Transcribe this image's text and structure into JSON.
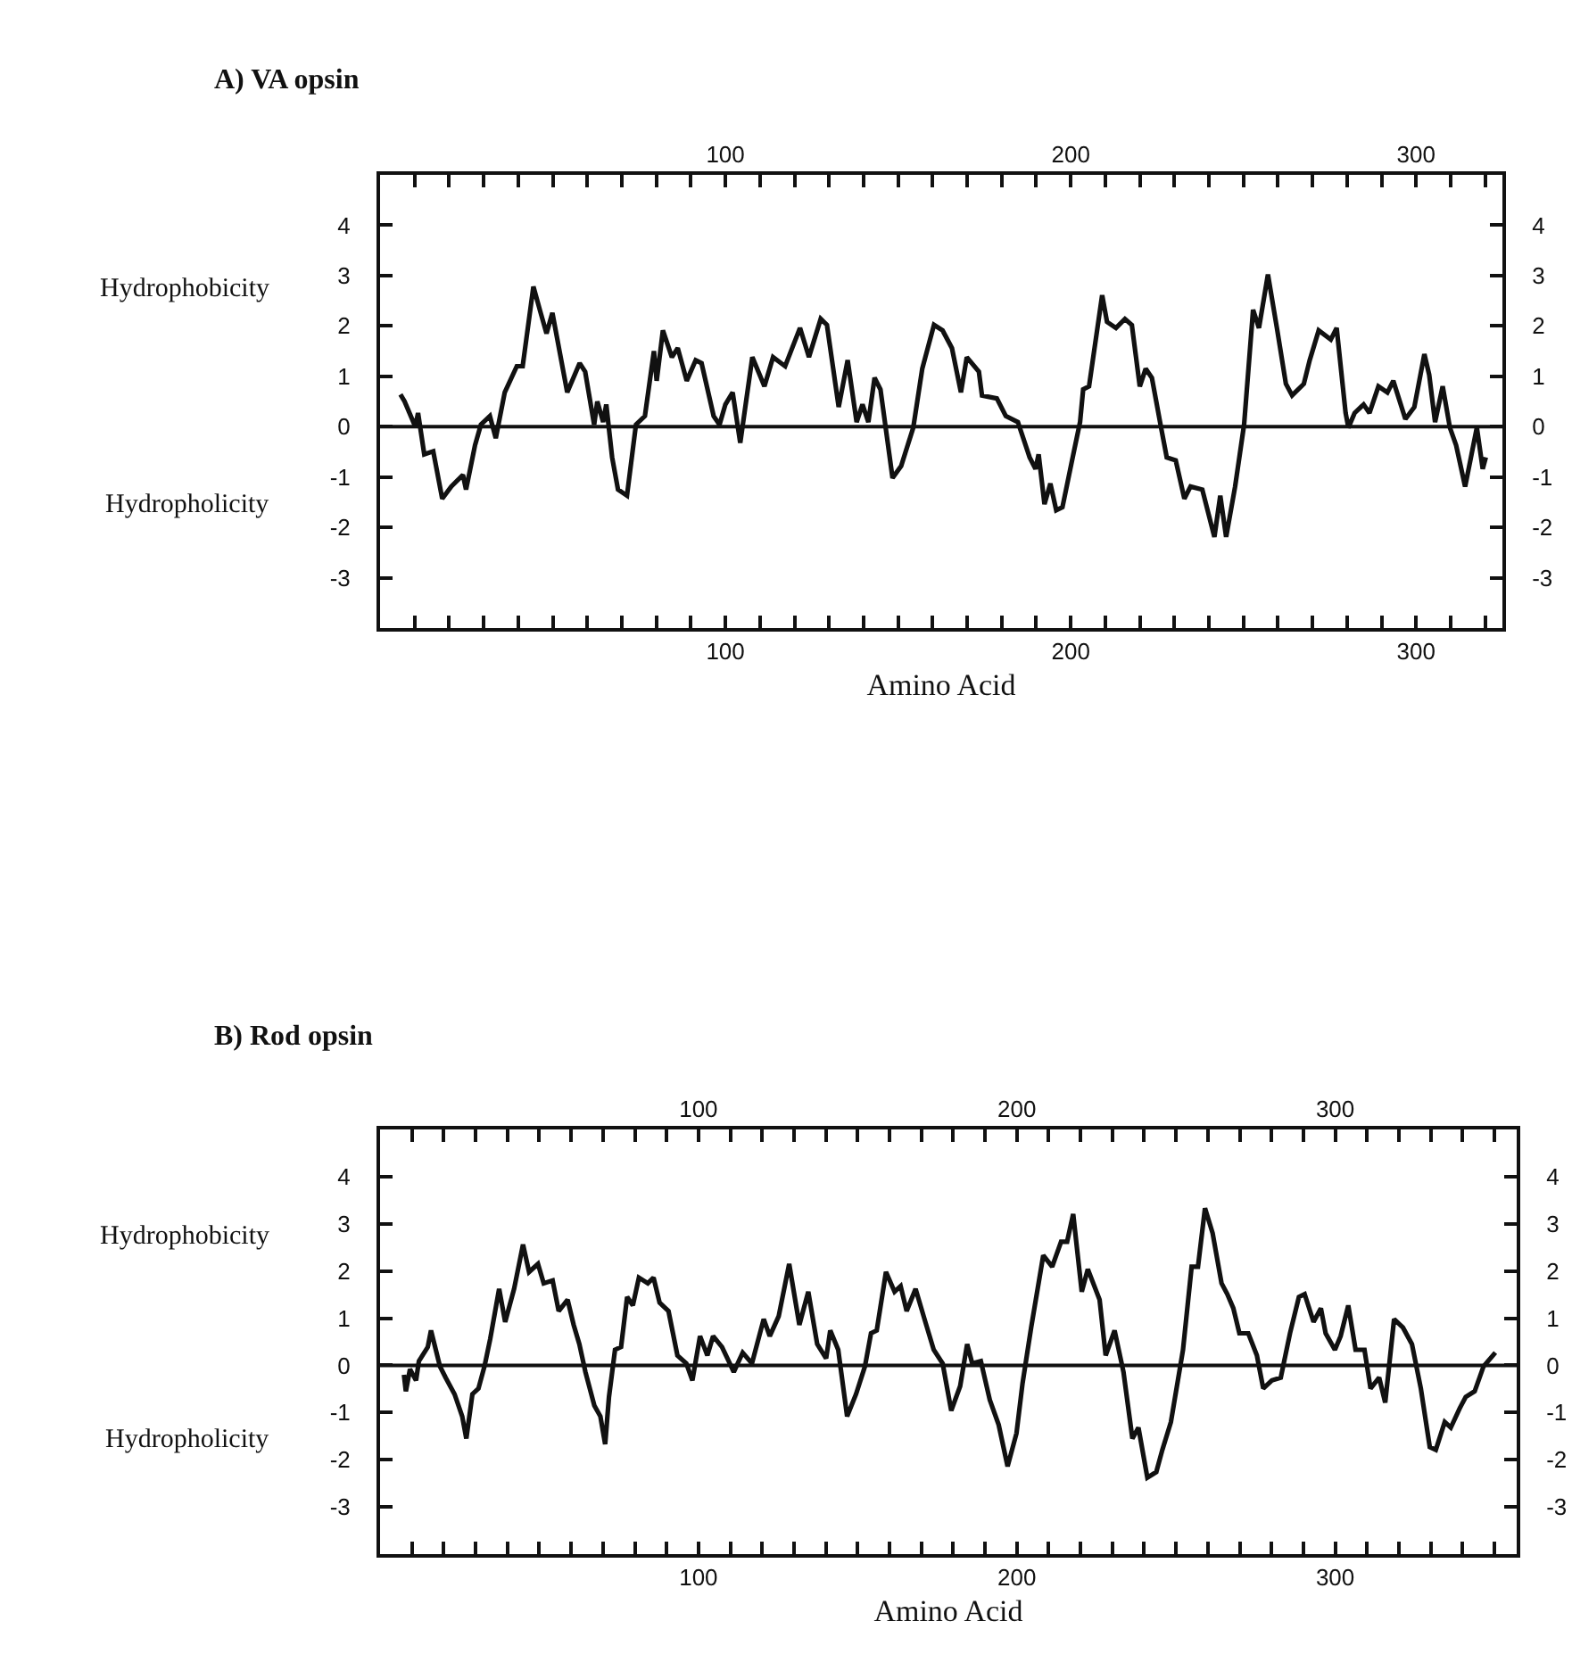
{
  "chart_data": [
    {
      "type": "line",
      "title": "A) VA opsin",
      "xlabel": "Amino Acid",
      "annotations": [
        "Hydrophobicity",
        "Hydropholicity"
      ],
      "x": [
        5.9,
        7.1,
        10.2,
        11,
        12.8,
        15.4,
        18,
        20.6,
        24,
        24.9,
        27.5,
        29.2,
        31.8,
        33.5,
        36.1,
        39.6,
        41.3,
        44.4,
        46.5,
        48.2,
        49.9,
        54.2,
        57.8,
        59.4,
        62,
        62.9,
        64.6,
        65.5,
        67.2,
        68.9,
        71.5,
        74.1,
        76.7,
        79.3,
        80.1,
        81.9,
        84.5,
        86.2,
        88.8,
        91.4,
        93.1,
        96.6,
        98.3,
        100,
        102.1,
        104.3,
        107.8,
        111.3,
        113.8,
        117.3,
        121.6,
        124.2,
        127.6,
        129.4,
        132.8,
        135.4,
        138,
        139.7,
        141.4,
        143.2,
        144.9,
        148.4,
        150.9,
        154.4,
        157,
        160.4,
        162.9,
        165.6,
        168.2,
        169.9,
        173.4,
        174.3,
        178.6,
        181.2,
        184.7,
        188.1,
        189.8,
        190.7,
        192.4,
        194.1,
        195.8,
        197.6,
        200.2,
        202.7,
        203.6,
        205.3,
        209.1,
        210.5,
        213.1,
        215.7,
        217.7,
        220,
        221.7,
        223.5,
        226,
        227.8,
        230.4,
        232.9,
        234.7,
        238.1,
        241.6,
        243.3,
        245,
        247.6,
        250.2,
        252.8,
        254.5,
        257.1,
        259.7,
        262.3,
        264.1,
        267.5,
        269.2,
        271.8,
        275.3,
        277,
        279.6,
        280.4,
        282.2,
        284.8,
        286.5,
        289.1,
        291.7,
        293.4,
        296.9,
        299.5,
        302.4,
        303.8,
        305.5,
        307.7,
        309.8,
        311.6,
        314.2,
        317.6,
        319.3,
        320.2
      ],
      "series": [
        {
          "color": "#111111",
          "values": [
            0.64,
            0.5,
            0,
            0.27,
            -0.55,
            -0.49,
            -1.43,
            -1.19,
            -0.96,
            -1.25,
            -0.37,
            0.04,
            0.21,
            -0.23,
            0.68,
            1.2,
            1.2,
            2.78,
            2.26,
            1.85,
            2.26,
            0.68,
            1.26,
            1.09,
            0.04,
            0.5,
            0.09,
            0.44,
            -0.61,
            -1.25,
            -1.37,
            0.04,
            0.21,
            1.5,
            0.91,
            1.91,
            1.38,
            1.56,
            0.91,
            1.32,
            1.26,
            0.21,
            0.04,
            0.44,
            0.68,
            -0.32,
            1.38,
            0.8,
            1.38,
            1.2,
            1.96,
            1.38,
            2.14,
            2.02,
            0.39,
            1.32,
            0.09,
            0.44,
            0.09,
            0.97,
            0.74,
            -1.02,
            -0.78,
            -0.02,
            1.15,
            2.02,
            1.91,
            1.56,
            0.68,
            1.38,
            1.09,
            0.62,
            0.56,
            0.21,
            0.09,
            -0.61,
            -0.84,
            -0.55,
            -1.54,
            -1.13,
            -1.66,
            -1.6,
            -0.73,
            0.09,
            0.74,
            0.8,
            2.61,
            2.08,
            1.96,
            2.14,
            2.02,
            0.8,
            1.15,
            0.97,
            0.04,
            -0.61,
            -0.67,
            -1.43,
            -1.19,
            -1.25,
            -2.19,
            -1.37,
            -2.19,
            -1.19,
            0.04,
            2.32,
            1.96,
            3.02,
            1.96,
            0.85,
            0.62,
            0.85,
            1.32,
            1.91,
            1.73,
            1.96,
            0.27,
            -0.02,
            0.27,
            0.44,
            0.27,
            0.8,
            0.68,
            0.91,
            0.15,
            0.39,
            1.44,
            1.03,
            0.09,
            0.8,
            -0.02,
            -0.37,
            -1.19,
            -0.02,
            -0.84,
            -0.61
          ]
        }
      ],
      "xlim": [
        0,
        325
      ],
      "ylim": [
        -4,
        5
      ],
      "xticks": [
        {
          "value": 10,
          "label": null
        },
        {
          "value": 20,
          "label": null
        },
        {
          "value": 30,
          "label": null
        },
        {
          "value": 40,
          "label": null
        },
        {
          "value": 50,
          "label": null
        },
        {
          "value": 60,
          "label": null
        },
        {
          "value": 70,
          "label": null
        },
        {
          "value": 80,
          "label": null
        },
        {
          "value": 90,
          "label": null
        },
        100,
        {
          "value": 110,
          "label": null
        },
        {
          "value": 120,
          "label": null
        },
        {
          "value": 130,
          "label": null
        },
        {
          "value": 140,
          "label": null
        },
        {
          "value": 150,
          "label": null
        },
        {
          "value": 160,
          "label": null
        },
        {
          "value": 170,
          "label": null
        },
        {
          "value": 180,
          "label": null
        },
        {
          "value": 190,
          "label": null
        },
        200,
        {
          "value": 210,
          "label": null
        },
        {
          "value": 220,
          "label": null
        },
        {
          "value": 230,
          "label": null
        },
        {
          "value": 240,
          "label": null
        },
        {
          "value": 250,
          "label": null
        },
        {
          "value": 260,
          "label": null
        },
        {
          "value": 270,
          "label": null
        },
        {
          "value": 280,
          "label": null
        },
        {
          "value": 290,
          "label": null
        },
        300,
        {
          "value": 310,
          "label": null
        },
        {
          "value": 320,
          "label": null
        }
      ],
      "x2lim": [
        0,
        325
      ],
      "x2ticks": [
        {
          "value": 10,
          "label": null
        },
        {
          "value": 20,
          "label": null
        },
        {
          "value": 30,
          "label": null
        },
        {
          "value": 40,
          "label": null
        },
        {
          "value": 50,
          "label": null
        },
        {
          "value": 60,
          "label": null
        },
        {
          "value": 70,
          "label": null
        },
        {
          "value": 80,
          "label": null
        },
        {
          "value": 90,
          "label": null
        },
        100,
        {
          "value": 110,
          "label": null
        },
        {
          "value": 120,
          "label": null
        },
        {
          "value": 130,
          "label": null
        },
        {
          "value": 140,
          "label": null
        },
        {
          "value": 150,
          "label": null
        },
        {
          "value": 160,
          "label": null
        },
        {
          "value": 170,
          "label": null
        },
        {
          "value": 180,
          "label": null
        },
        {
          "value": 190,
          "label": null
        },
        200,
        {
          "value": 210,
          "label": null
        },
        {
          "value": 220,
          "label": null
        },
        {
          "value": 230,
          "label": null
        },
        {
          "value": 240,
          "label": null
        },
        {
          "value": 250,
          "label": null
        },
        {
          "value": 260,
          "label": null
        },
        {
          "value": 270,
          "label": null
        },
        {
          "value": 280,
          "label": null
        },
        {
          "value": 290,
          "label": null
        },
        300,
        {
          "value": 310,
          "label": null
        },
        {
          "value": 320,
          "label": null
        }
      ],
      "yticks": [
        -3,
        -2,
        -1,
        0,
        1,
        2,
        3,
        4
      ],
      "y2lim": [
        -4,
        5
      ],
      "y2ticks": [
        -3,
        -2,
        -1,
        0,
        1,
        2,
        3,
        4
      ],
      "ref_lines": [
        {
          "axis": "y",
          "value": 0,
          "color": "#111111"
        }
      ],
      "grid": false,
      "marker": "none",
      "line_style": "solid"
    },
    {
      "type": "line",
      "title": "B) Rod opsin",
      "xlabel": "Amino Acid",
      "annotations": [
        "Hydrophobicity",
        "Hydropholicity"
      ],
      "x": [
        7.5,
        8.1,
        9.4,
        11.3,
        12.2,
        15,
        16,
        18.8,
        20.6,
        23.4,
        25.8,
        27.1,
        29,
        30.9,
        32.8,
        34.6,
        37.4,
        39.3,
        42.1,
        44.9,
        46.8,
        49.6,
        51.4,
        54.2,
        56.1,
        58.9,
        60.8,
        62.6,
        64.5,
        67.3,
        69.2,
        70.7,
        71.9,
        73.8,
        75.7,
        77.6,
        79.4,
        81.3,
        84.1,
        85.9,
        87.8,
        90.6,
        93.4,
        96.2,
        98.1,
        100.5,
        102.8,
        104.6,
        107.4,
        111.1,
        113.9,
        116.8,
        120.5,
        122.4,
        125.2,
        128.5,
        131.7,
        134.5,
        137.3,
        140.1,
        141.4,
        143.9,
        146.7,
        149.5,
        152.3,
        154.2,
        156,
        158.9,
        161.6,
        163.5,
        165.4,
        168.2,
        171,
        173.9,
        176.7,
        179.4,
        182.2,
        184.4,
        186,
        188.7,
        191.5,
        194.3,
        197.1,
        199.9,
        201.8,
        204.5,
        208.3,
        211.1,
        213.9,
        215.8,
        217.7,
        220.4,
        222.3,
        226,
        227.9,
        230.7,
        233.5,
        236.3,
        238.2,
        241,
        243.8,
        245.7,
        248.4,
        252.2,
        254.9,
        256.9,
        259.1,
        261.5,
        264.3,
        266.1,
        268,
        269.9,
        272.7,
        275.4,
        277.4,
        280.1,
        282.9,
        285.8,
        288.6,
        290.4,
        293.2,
        295.5,
        297,
        299.9,
        301.7,
        304.1,
        306.4,
        309.2,
        311.1,
        313.8,
        315.7,
        318.5,
        321.3,
        324.1,
        326.9,
        329.7,
        331.6,
        334.4,
        336.3,
        339.1,
        341,
        343.8,
        346.6,
        350.3
      ],
      "series": [
        {
          "color": "#111111",
          "values": [
            -0.2,
            -0.55,
            -0.08,
            -0.32,
            0.09,
            0.39,
            0.74,
            -0.02,
            -0.26,
            -0.61,
            -1.08,
            -1.55,
            -0.61,
            -0.49,
            -0.02,
            0.56,
            1.62,
            0.92,
            1.62,
            2.56,
            1.98,
            2.15,
            1.74,
            1.8,
            1.15,
            1.39,
            0.86,
            0.45,
            -0.14,
            -0.85,
            -1.08,
            -1.67,
            -0.67,
            0.33,
            0.39,
            1.45,
            1.27,
            1.86,
            1.74,
            1.86,
            1.33,
            1.15,
            0.21,
            0.04,
            -0.32,
            0.62,
            0.21,
            0.62,
            0.39,
            -0.14,
            0.27,
            0.04,
            0.98,
            0.62,
            1.04,
            2.15,
            0.86,
            1.56,
            0.45,
            0.15,
            0.74,
            0.33,
            -1.08,
            -0.61,
            -0.02,
            0.68,
            0.74,
            1.98,
            1.56,
            1.68,
            1.15,
            1.62,
            0.98,
            0.33,
            0.04,
            -0.96,
            -0.44,
            0.45,
            0.04,
            0.09,
            -0.73,
            -1.26,
            -2.14,
            -1.44,
            -0.38,
            0.8,
            2.33,
            2.09,
            2.62,
            2.62,
            3.21,
            1.56,
            2.04,
            1.39,
            0.21,
            0.74,
            -0.14,
            -1.55,
            -1.32,
            -2.38,
            -2.26,
            -1.79,
            -1.2,
            0.33,
            2.09,
            2.09,
            3.33,
            2.8,
            1.74,
            1.51,
            1.21,
            0.68,
            0.68,
            0.21,
            -0.49,
            -0.32,
            -0.26,
            0.68,
            1.45,
            1.51,
            0.92,
            1.21,
            0.68,
            0.33,
            0.62,
            1.27,
            0.33,
            0.33,
            -0.49,
            -0.26,
            -0.79,
            0.98,
            0.8,
            0.45,
            -0.49,
            -1.73,
            -1.79,
            -1.2,
            -1.32,
            -0.91,
            -0.67,
            -0.55,
            -0.02,
            0.27
          ]
        }
      ],
      "xlim": [
        0,
        357
      ],
      "ylim": [
        -4,
        5
      ],
      "xticks": [
        {
          "value": 10,
          "label": null
        },
        {
          "value": 20,
          "label": null
        },
        {
          "value": 30,
          "label": null
        },
        {
          "value": 40,
          "label": null
        },
        {
          "value": 50,
          "label": null
        },
        {
          "value": 60,
          "label": null
        },
        {
          "value": 70,
          "label": null
        },
        {
          "value": 80,
          "label": null
        },
        {
          "value": 90,
          "label": null
        },
        100,
        {
          "value": 110,
          "label": null
        },
        {
          "value": 120,
          "label": null
        },
        {
          "value": 130,
          "label": null
        },
        {
          "value": 140,
          "label": null
        },
        {
          "value": 150,
          "label": null
        },
        {
          "value": 160,
          "label": null
        },
        {
          "value": 170,
          "label": null
        },
        {
          "value": 180,
          "label": null
        },
        {
          "value": 190,
          "label": null
        },
        200,
        {
          "value": 210,
          "label": null
        },
        {
          "value": 220,
          "label": null
        },
        {
          "value": 230,
          "label": null
        },
        {
          "value": 240,
          "label": null
        },
        {
          "value": 250,
          "label": null
        },
        {
          "value": 260,
          "label": null
        },
        {
          "value": 270,
          "label": null
        },
        {
          "value": 280,
          "label": null
        },
        {
          "value": 290,
          "label": null
        },
        300,
        {
          "value": 310,
          "label": null
        },
        {
          "value": 320,
          "label": null
        },
        {
          "value": 330,
          "label": null
        },
        {
          "value": 340,
          "label": null
        },
        {
          "value": 350,
          "label": null
        }
      ],
      "x2lim": [
        0,
        357
      ],
      "x2ticks": [
        {
          "value": 10,
          "label": null
        },
        {
          "value": 20,
          "label": null
        },
        {
          "value": 30,
          "label": null
        },
        {
          "value": 40,
          "label": null
        },
        {
          "value": 50,
          "label": null
        },
        {
          "value": 60,
          "label": null
        },
        {
          "value": 70,
          "label": null
        },
        {
          "value": 80,
          "label": null
        },
        {
          "value": 90,
          "label": null
        },
        100,
        {
          "value": 110,
          "label": null
        },
        {
          "value": 120,
          "label": null
        },
        {
          "value": 130,
          "label": null
        },
        {
          "value": 140,
          "label": null
        },
        {
          "value": 150,
          "label": null
        },
        {
          "value": 160,
          "label": null
        },
        {
          "value": 170,
          "label": null
        },
        {
          "value": 180,
          "label": null
        },
        {
          "value": 190,
          "label": null
        },
        200,
        {
          "value": 210,
          "label": null
        },
        {
          "value": 220,
          "label": null
        },
        {
          "value": 230,
          "label": null
        },
        {
          "value": 240,
          "label": null
        },
        {
          "value": 250,
          "label": null
        },
        {
          "value": 260,
          "label": null
        },
        {
          "value": 270,
          "label": null
        },
        {
          "value": 280,
          "label": null
        },
        {
          "value": 290,
          "label": null
        },
        300,
        {
          "value": 310,
          "label": null
        },
        {
          "value": 320,
          "label": null
        },
        {
          "value": 330,
          "label": null
        },
        {
          "value": 340,
          "label": null
        },
        {
          "value": 350,
          "label": null
        }
      ],
      "yticks": [
        -3,
        -2,
        -1,
        0,
        1,
        2,
        3,
        4
      ],
      "y2lim": [
        -4,
        5
      ],
      "y2ticks": [
        -3,
        -2,
        -1,
        0,
        1,
        2,
        3,
        4
      ],
      "ref_lines": [
        {
          "axis": "y",
          "value": 0,
          "color": "#111111"
        }
      ],
      "grid": false,
      "marker": "none",
      "line_style": "solid"
    }
  ]
}
